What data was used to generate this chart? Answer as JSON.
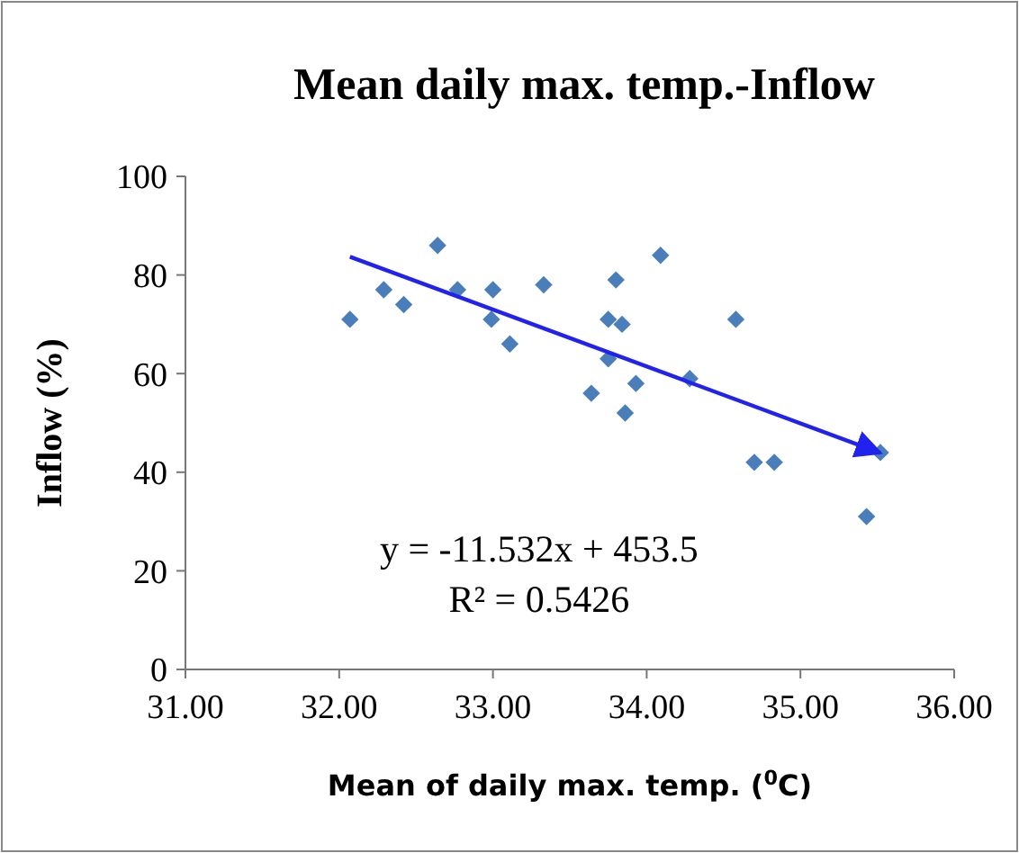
{
  "chart_data": {
    "type": "scatter",
    "title": "Mean daily max. temp.-Inflow",
    "xlabel": "Mean of daily max. temp. ($^{0}$C)",
    "ylabel": "Inflow (%)",
    "xlim": [
      31,
      36
    ],
    "xticks": [
      {
        "value": 31,
        "label": "31.00"
      },
      {
        "value": 32,
        "label": "32.00"
      },
      {
        "value": 33,
        "label": "33.00"
      },
      {
        "value": 34,
        "label": "34.00"
      },
      {
        "value": 35,
        "label": "35.00"
      },
      {
        "value": 36,
        "label": "36.00"
      }
    ],
    "ylim": [
      0,
      100
    ],
    "yticks": [
      0,
      20,
      40,
      60,
      80,
      100
    ],
    "grid": false,
    "marker": "diamond",
    "annotations": [
      "y = -11.532x + 453.5",
      "R² = 0.5426"
    ],
    "series": [
      {
        "color": "#4a7ebb",
        "x": [
          32.07,
          32.29,
          32.42,
          32.64,
          32.77,
          33.0,
          32.99,
          33.11,
          33.33,
          33.64,
          33.75,
          33.75,
          33.8,
          33.84,
          33.86,
          33.93,
          34.09,
          34.58,
          34.28,
          34.7,
          34.83,
          35.52,
          35.43
        ],
        "values": [
          71,
          77,
          74,
          86,
          77,
          77,
          71,
          66,
          78,
          56,
          71,
          63,
          79,
          70,
          52,
          58,
          84,
          71,
          59,
          42,
          42,
          44,
          31
        ]
      },
      {
        "type": "line",
        "color": "#2222ee",
        "marker": "none",
        "x": [
          32.07,
          35.52
        ],
        "values": [
          83.7,
          43.9
        ]
      }
    ]
  }
}
